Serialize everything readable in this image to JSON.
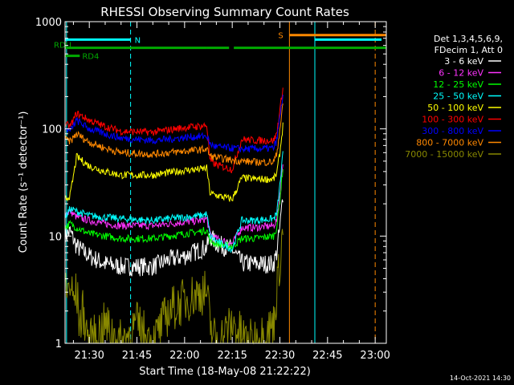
{
  "chart_data": {
    "type": "line",
    "title": "RHESSI Observing Summary Count Rates",
    "xlabel": "Start Time (18-May-08 21:22:22)",
    "ylabel": "Count Rate (s⁻¹ detector⁻¹)",
    "x_scale": "time",
    "y_scale": "log",
    "xlim": [
      "21:22:22",
      "23:03:30"
    ],
    "ylim": [
      1,
      1000
    ],
    "x_ticks": [
      "21:30",
      "21:45",
      "22:00",
      "22:15",
      "22:30",
      "22:45",
      "23:00"
    ],
    "y_ticks": [
      "1",
      "10",
      "100",
      "1000"
    ],
    "footer": "14-Oct-2021 14:30",
    "legend_header": [
      "Det 1,3,4,5,6,9,",
      "FDecim 1, Att 0"
    ],
    "legend_position": "right",
    "series": [
      {
        "name": "3 - 6 keV",
        "color": "#ffffff",
        "points": [
          [
            "21:22:22",
            10
          ],
          [
            "21:24",
            11
          ],
          [
            "21:26",
            8
          ],
          [
            "21:30",
            6.5
          ],
          [
            "21:35",
            5.5
          ],
          [
            "21:40",
            5.2
          ],
          [
            "21:50",
            5.2
          ],
          [
            "21:55",
            6
          ],
          [
            "22:00",
            6.5
          ],
          [
            "22:05",
            7.5
          ],
          [
            "22:07",
            7.8
          ],
          [
            "22:08",
            10
          ],
          [
            "22:10",
            8.5
          ],
          [
            "22:15",
            7.5
          ],
          [
            "22:18",
            5.6
          ],
          [
            "22:22",
            5.5
          ],
          [
            "22:28",
            5.5
          ],
          [
            "22:29",
            7
          ],
          [
            "22:30",
            12
          ],
          [
            "22:31",
            25
          ]
        ]
      },
      {
        "name": "6 - 12 keV",
        "color": "#ff33ff",
        "points": [
          [
            "21:22:22",
            16
          ],
          [
            "21:24",
            17
          ],
          [
            "21:26",
            15
          ],
          [
            "21:30",
            14
          ],
          [
            "21:35",
            13
          ],
          [
            "21:40",
            12.5
          ],
          [
            "21:50",
            12.5
          ],
          [
            "21:55",
            13
          ],
          [
            "22:00",
            13.5
          ],
          [
            "22:05",
            14
          ],
          [
            "22:07",
            14.5
          ],
          [
            "22:08",
            10.5
          ],
          [
            "22:10",
            9.5
          ],
          [
            "22:15",
            8.5
          ],
          [
            "22:18",
            12
          ],
          [
            "22:22",
            12
          ],
          [
            "22:28",
            12.5
          ],
          [
            "22:29",
            14
          ],
          [
            "22:30",
            25
          ],
          [
            "22:31",
            50
          ]
        ]
      },
      {
        "name": "12 - 25 keV",
        "color": "#00ff00",
        "points": [
          [
            "21:22:22",
            12
          ],
          [
            "21:24",
            13
          ],
          [
            "21:26",
            12
          ],
          [
            "21:30",
            10.5
          ],
          [
            "21:35",
            10
          ],
          [
            "21:40",
            9.5
          ],
          [
            "21:50",
            9.5
          ],
          [
            "21:55",
            10
          ],
          [
            "22:00",
            10.5
          ],
          [
            "22:05",
            11
          ],
          [
            "22:07",
            11.5
          ],
          [
            "22:08",
            9
          ],
          [
            "22:10",
            8.5
          ],
          [
            "22:15",
            8
          ],
          [
            "22:18",
            9.5
          ],
          [
            "22:22",
            9.5
          ],
          [
            "22:28",
            10
          ],
          [
            "22:29",
            12
          ],
          [
            "22:30",
            22
          ],
          [
            "22:31",
            45
          ]
        ]
      },
      {
        "name": "25 - 50 keV",
        "color": "#00ffff",
        "points": [
          [
            "21:22:22",
            15
          ],
          [
            "21:24",
            18
          ],
          [
            "21:26",
            17
          ],
          [
            "21:30",
            15.5
          ],
          [
            "21:35",
            15
          ],
          [
            "21:40",
            14.5
          ],
          [
            "21:50",
            14
          ],
          [
            "21:55",
            14.5
          ],
          [
            "22:00",
            15
          ],
          [
            "22:05",
            15.5
          ],
          [
            "22:07",
            16
          ],
          [
            "22:08",
            10
          ],
          [
            "22:10",
            9
          ],
          [
            "22:15",
            7.5
          ],
          [
            "22:18",
            14
          ],
          [
            "22:22",
            14
          ],
          [
            "22:28",
            14.5
          ],
          [
            "22:29",
            16
          ],
          [
            "22:30",
            30
          ],
          [
            "22:31",
            60
          ]
        ]
      },
      {
        "name": "50 - 100 keV",
        "color": "#ffff00",
        "points": [
          [
            "21:22:22",
            22
          ],
          [
            "21:24",
            24
          ],
          [
            "21:26",
            55
          ],
          [
            "21:30",
            45
          ],
          [
            "21:35",
            40
          ],
          [
            "21:40",
            37
          ],
          [
            "21:50",
            37
          ],
          [
            "21:55",
            39
          ],
          [
            "22:00",
            41
          ],
          [
            "22:05",
            42
          ],
          [
            "22:07",
            43
          ],
          [
            "22:08",
            25
          ],
          [
            "22:10",
            24
          ],
          [
            "22:15",
            22
          ],
          [
            "22:18",
            35
          ],
          [
            "22:22",
            34
          ],
          [
            "22:28",
            34
          ],
          [
            "22:29",
            38
          ],
          [
            "22:30",
            60
          ],
          [
            "22:31",
            110
          ]
        ]
      },
      {
        "name": "100 - 300 keV",
        "color": "#ff0000",
        "points": [
          [
            "21:22:22",
            110
          ],
          [
            "21:24",
            105
          ],
          [
            "21:26",
            140
          ],
          [
            "21:30",
            120
          ],
          [
            "21:35",
            105
          ],
          [
            "21:40",
            95
          ],
          [
            "21:50",
            93
          ],
          [
            "21:55",
            98
          ],
          [
            "22:00",
            103
          ],
          [
            "22:05",
            106
          ],
          [
            "22:07",
            108
          ],
          [
            "22:08",
            50
          ],
          [
            "22:10",
            46
          ],
          [
            "22:15",
            42
          ],
          [
            "22:18",
            80
          ],
          [
            "22:22",
            78
          ],
          [
            "22:28",
            78
          ],
          [
            "22:29",
            90
          ],
          [
            "22:30",
            150
          ],
          [
            "22:31",
            250
          ]
        ]
      },
      {
        "name": "300 - 800 keV",
        "color": "#0000ff",
        "points": [
          [
            "21:22:22",
            100
          ],
          [
            "21:24",
            95
          ],
          [
            "21:26",
            120
          ],
          [
            "21:30",
            100
          ],
          [
            "21:35",
            90
          ],
          [
            "21:40",
            82
          ],
          [
            "21:50",
            78
          ],
          [
            "21:55",
            80
          ],
          [
            "22:00",
            83
          ],
          [
            "22:05",
            85
          ],
          [
            "22:07",
            86
          ],
          [
            "22:08",
            72
          ],
          [
            "22:10",
            68
          ],
          [
            "22:15",
            66
          ],
          [
            "22:18",
            65
          ],
          [
            "22:22",
            65
          ],
          [
            "22:28",
            66
          ],
          [
            "22:29",
            78
          ],
          [
            "22:30",
            130
          ],
          [
            "22:31",
            210
          ]
        ]
      },
      {
        "name": "800 - 7000 keV",
        "color": "#ff8800",
        "points": [
          [
            "21:22:22",
            80
          ],
          [
            "21:24",
            76
          ],
          [
            "21:26",
            90
          ],
          [
            "21:30",
            75
          ],
          [
            "21:35",
            66
          ],
          [
            "21:40",
            60
          ],
          [
            "21:50",
            58
          ],
          [
            "21:55",
            60
          ],
          [
            "22:00",
            62
          ],
          [
            "22:05",
            64
          ],
          [
            "22:07",
            65
          ],
          [
            "22:08",
            56
          ],
          [
            "22:10",
            54
          ],
          [
            "22:15",
            51
          ],
          [
            "22:18",
            50
          ],
          [
            "22:22",
            49
          ],
          [
            "22:28",
            49
          ],
          [
            "22:29",
            58
          ],
          [
            "22:30",
            100
          ],
          [
            "22:31",
            170
          ]
        ]
      },
      {
        "name": "7000 - 15000 keV",
        "color": "#888800",
        "points": [
          [
            "21:22:22",
            4
          ],
          [
            "21:23",
            3
          ],
          [
            "21:24",
            3.5
          ],
          [
            "21:25",
            2.5
          ],
          [
            "21:26",
            3
          ],
          [
            "21:27",
            1.5
          ],
          [
            "21:28",
            2
          ],
          [
            "21:30",
            1
          ],
          [
            "21:35",
            1.5
          ],
          [
            "21:40",
            1
          ],
          [
            "21:45",
            1.5
          ],
          [
            "21:50",
            1
          ],
          [
            "21:55",
            2
          ],
          [
            "22:00",
            2.5
          ],
          [
            "22:05",
            3
          ],
          [
            "22:07",
            3
          ],
          [
            "22:08",
            1.5
          ],
          [
            "22:10",
            1
          ],
          [
            "22:15",
            1.5
          ],
          [
            "22:20",
            1
          ],
          [
            "22:25",
            1.2
          ],
          [
            "22:28",
            1.5
          ],
          [
            "22:29",
            3
          ],
          [
            "22:30",
            6
          ],
          [
            "22:31",
            12
          ]
        ]
      }
    ],
    "flag_bars": [
      {
        "label": "RDU",
        "color": "#00aa00",
        "level": 570,
        "segments": [
          [
            "21:22:22",
            "22:07"
          ],
          [
            "22:07",
            "22:14"
          ],
          [
            "22:15:30",
            "23:03:30"
          ]
        ]
      },
      {
        "label": "RD4",
        "color": "#00aa00",
        "level": 480,
        "segments": [
          [
            "21:22:22",
            "21:27"
          ]
        ]
      },
      {
        "label": "N",
        "color": "#00ffff",
        "level": 680,
        "segments": [
          [
            "21:22:22",
            "21:43"
          ],
          [
            "22:41",
            "23:02"
          ]
        ]
      },
      {
        "label": "S",
        "color": "#ff8800",
        "level": 750,
        "segments": [
          [
            "22:33",
            "23:03:30"
          ]
        ]
      }
    ],
    "markers": [
      {
        "time": "21:22:50",
        "color": "#00ffff",
        "style": "solid"
      },
      {
        "time": "21:43",
        "color": "#00ffff",
        "style": "dashed"
      },
      {
        "time": "22:33",
        "color": "#ff8800",
        "style": "solid"
      },
      {
        "time": "22:41",
        "color": "#00ffff",
        "style": "solid"
      },
      {
        "time": "23:00",
        "color": "#ff8800",
        "style": "dashed"
      }
    ],
    "colors": {
      "background": "#000000",
      "axes": "#ffffff",
      "text": "#ffffff"
    }
  }
}
